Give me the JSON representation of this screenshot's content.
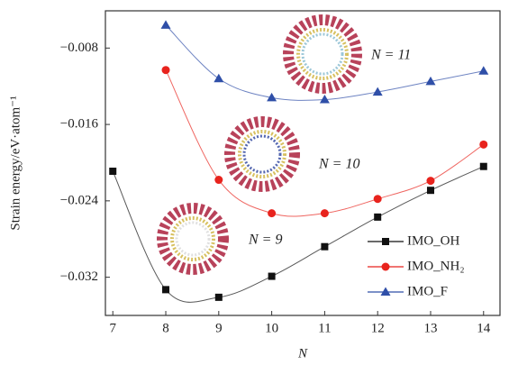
{
  "chart_data": {
    "type": "line",
    "x_label": "N",
    "y_label": "Strain energy/eV·atom⁻¹",
    "x": [
      7,
      8,
      9,
      10,
      11,
      12,
      13,
      14
    ],
    "series": [
      {
        "name": "IMO_OH",
        "color": "#111111",
        "marker": "square",
        "values": [
          -0.0209,
          -0.0333,
          -0.0341,
          -0.0319,
          -0.0288,
          -0.0257,
          -0.0229,
          -0.0204
        ]
      },
      {
        "name": "IMO_NH₂",
        "color": "#e8231d",
        "marker": "circle",
        "values": [
          null,
          -0.0103,
          -0.0218,
          -0.0253,
          -0.0253,
          -0.0238,
          -0.0219,
          -0.0181
        ]
      },
      {
        "name": "IMO_F",
        "color": "#2f4fa8",
        "marker": "triangle",
        "values": [
          null,
          -0.0056,
          -0.0112,
          -0.0132,
          -0.0134,
          -0.0126,
          -0.0115,
          -0.0104
        ]
      }
    ],
    "annotations": [
      "N = 11",
      "N = 10",
      "N = 9"
    ],
    "xlim": [
      6.86,
      14.31
    ],
    "ylim": [
      -0.036,
      -0.0041
    ],
    "xticks": [
      7,
      8,
      9,
      10,
      11,
      12,
      13,
      14
    ],
    "yticks": [
      {
        "value": -0.008,
        "label": "−0.008"
      },
      {
        "value": -0.016,
        "label": "−0.016"
      },
      {
        "value": -0.024,
        "label": "−0.024"
      },
      {
        "value": -0.032,
        "label": "−0.032"
      }
    ]
  }
}
